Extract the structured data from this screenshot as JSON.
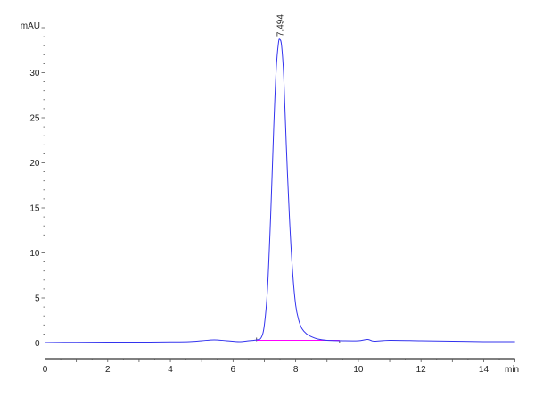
{
  "chart_data": {
    "type": "line",
    "title": "",
    "xlabel": "min",
    "ylabel": "mAU",
    "xlim": [
      0,
      15
    ],
    "ylim": [
      -2,
      35
    ],
    "x_ticks": [
      0,
      2,
      4,
      6,
      8,
      10,
      12,
      14
    ],
    "y_ticks": [
      0,
      5,
      10,
      15,
      20,
      25,
      30
    ],
    "grid": false,
    "colors": {
      "trace": "#3333ee",
      "baseline": "#ff00ff",
      "axis": "#000000"
    },
    "peak_label": "7.494",
    "series": [
      {
        "x": [
          0,
          1,
          2,
          3,
          4,
          4.6,
          5.0,
          5.4,
          5.8,
          6.2,
          6.5,
          6.75,
          6.9,
          7.0,
          7.1,
          7.2,
          7.3,
          7.38,
          7.45,
          7.494,
          7.55,
          7.62,
          7.7,
          7.8,
          7.9,
          8.0,
          8.1,
          8.2,
          8.35,
          8.5,
          8.7,
          9.0,
          9.5,
          10.0,
          10.3,
          10.5,
          11.0,
          12.0,
          13.0,
          14.0,
          15.0
        ],
        "y": [
          0.05,
          0.08,
          0.1,
          0.1,
          0.12,
          0.15,
          0.25,
          0.35,
          0.25,
          0.15,
          0.25,
          0.35,
          0.6,
          2.0,
          6.0,
          14.0,
          24.0,
          30.5,
          33.3,
          33.7,
          33.0,
          29.5,
          22.0,
          14.0,
          8.0,
          4.2,
          2.5,
          1.6,
          1.0,
          0.7,
          0.45,
          0.3,
          0.25,
          0.25,
          0.4,
          0.2,
          0.3,
          0.25,
          0.2,
          0.15,
          0.15
        ]
      }
    ],
    "integration_baseline": {
      "x": [
        6.75,
        9.4
      ],
      "y": [
        0.3,
        0.3
      ]
    }
  }
}
